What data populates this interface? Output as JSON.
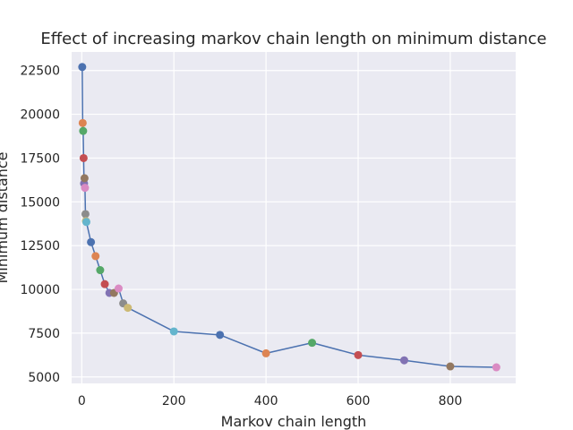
{
  "chart_data": {
    "type": "line",
    "title": "Effect of increasing markov chain length on minimum distance",
    "xlabel": "Markov chain length",
    "ylabel": "Minimum distance",
    "xlim": [
      -22,
      942
    ],
    "ylim": [
      4630,
      23560
    ],
    "x_ticks": [
      0,
      200,
      400,
      600,
      800
    ],
    "x_tick_labels": [
      "0",
      "200",
      "400",
      "600",
      "800"
    ],
    "y_ticks": [
      5000,
      7500,
      10000,
      12500,
      15000,
      17500,
      20000,
      22500
    ],
    "y_tick_labels": [
      "5000",
      "7500",
      "10000",
      "12500",
      "15000",
      "17500",
      "20000",
      "22500"
    ],
    "grid": true,
    "style": "seaborn-darkgrid",
    "line_color": "#4c72b0",
    "marker_palette": [
      "#4c72b0",
      "#dd8452",
      "#55a868",
      "#c44e52",
      "#8172b3",
      "#937860",
      "#da8bc3",
      "#8c8c8c",
      "#ccb974",
      "#64b5cd"
    ],
    "points": [
      {
        "x": 1,
        "y": 22700
      },
      {
        "x": 2,
        "y": 19500
      },
      {
        "x": 3,
        "y": 19050
      },
      {
        "x": 4,
        "y": 17500
      },
      {
        "x": 5,
        "y": 16050
      },
      {
        "x": 6,
        "y": 16350
      },
      {
        "x": 7,
        "y": 15800
      },
      {
        "x": 8,
        "y": 14300
      },
      {
        "x": 9,
        "y": 13900
      },
      {
        "x": 10,
        "y": 13850
      },
      {
        "x": 20,
        "y": 12700
      },
      {
        "x": 30,
        "y": 11900
      },
      {
        "x": 40,
        "y": 11100
      },
      {
        "x": 50,
        "y": 10300
      },
      {
        "x": 60,
        "y": 9800
      },
      {
        "x": 70,
        "y": 9800
      },
      {
        "x": 80,
        "y": 10050
      },
      {
        "x": 90,
        "y": 9200
      },
      {
        "x": 100,
        "y": 8950
      },
      {
        "x": 200,
        "y": 7600
      },
      {
        "x": 300,
        "y": 7400
      },
      {
        "x": 400,
        "y": 6350
      },
      {
        "x": 500,
        "y": 6950
      },
      {
        "x": 600,
        "y": 6250
      },
      {
        "x": 700,
        "y": 5950
      },
      {
        "x": 800,
        "y": 5600
      },
      {
        "x": 900,
        "y": 5550
      }
    ]
  }
}
